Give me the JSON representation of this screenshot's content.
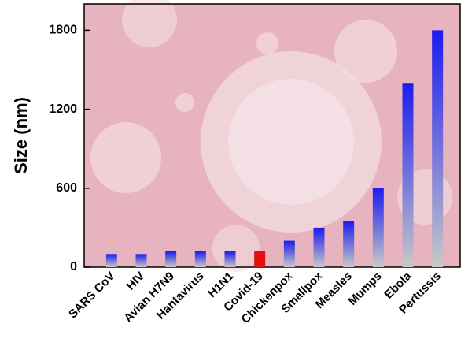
{
  "chart_data": {
    "type": "bar",
    "y_label": "Size (nm)",
    "categories": [
      "SARS CoV",
      "HIV",
      "Avian H7N9",
      "Hantavirus",
      "H1N1",
      "Covid-19",
      "Chickenpox",
      "Smallpox",
      "Measles",
      "Mumps",
      "Ebola",
      "Pertussis"
    ],
    "values": [
      100,
      100,
      120,
      120,
      120,
      120,
      200,
      300,
      350,
      600,
      1400,
      1800
    ],
    "colors": [
      "#1c1cf0",
      "#1c1cf0",
      "#1c1cf0",
      "#1c1cf0",
      "#1c1cf0",
      "#e01010",
      "#1c1cf0",
      "#1c1cf0",
      "#1c1cf0",
      "#1c1cf0",
      "#1c1cf0",
      "#1c1cf0"
    ],
    "ylim": [
      0,
      2000
    ],
    "yticks": [
      0,
      600,
      1200,
      1800
    ]
  }
}
